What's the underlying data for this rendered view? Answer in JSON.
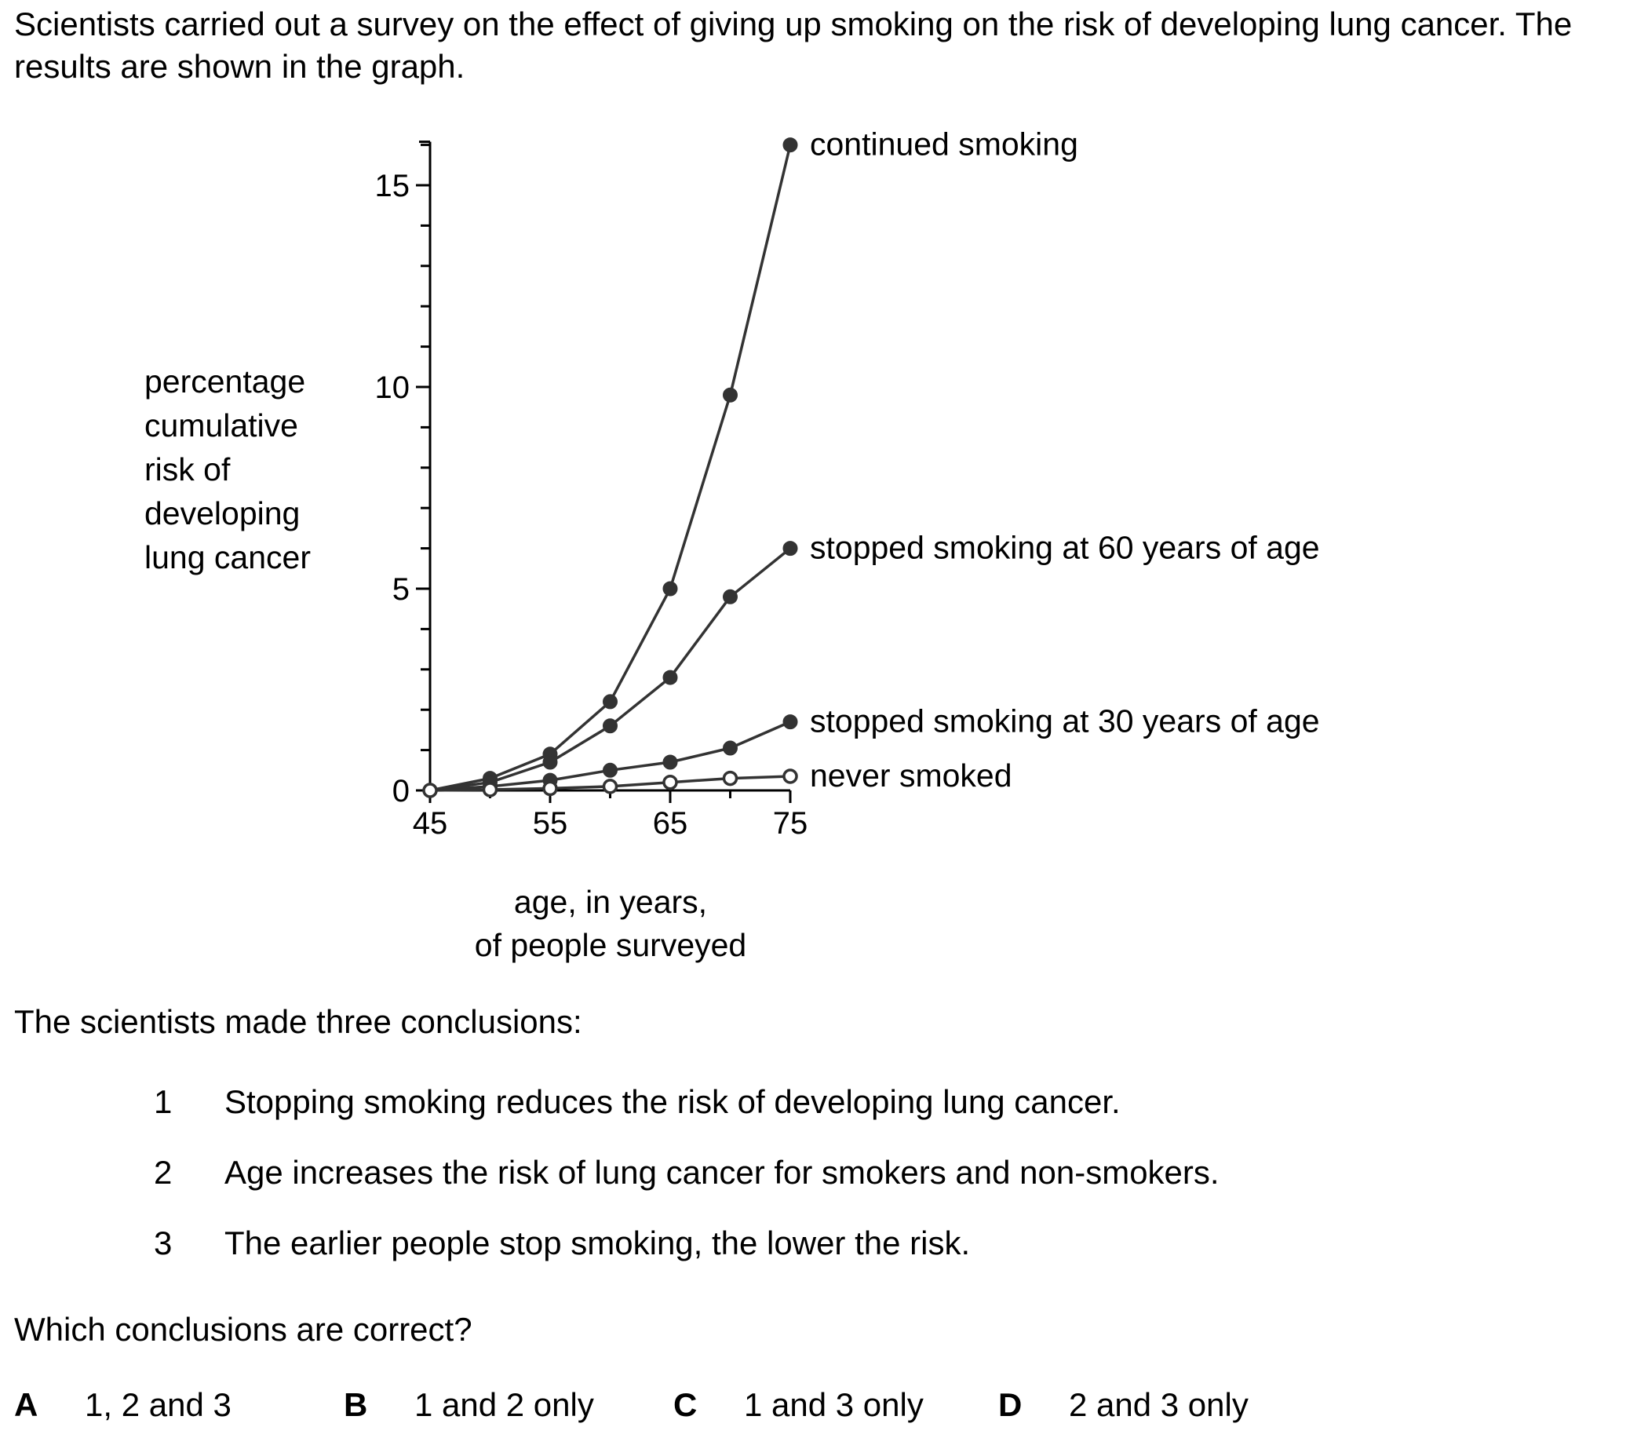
{
  "intro_text": "Scientists carried out a survey on the effect of giving up smoking on the risk of developing lung cancer. The results are shown in the graph.",
  "chart_data": {
    "type": "line",
    "ylabel_lines": [
      "percentage",
      "cumulative",
      "risk of",
      "developing",
      "lung cancer"
    ],
    "xlabel_lines": [
      "age, in years,",
      "of people surveyed"
    ],
    "xlim": [
      45,
      75
    ],
    "ylim": [
      0,
      16
    ],
    "x_ticks": [
      45,
      55,
      65,
      75
    ],
    "y_ticks": [
      0,
      5,
      10,
      15
    ],
    "grid": false,
    "series": [
      {
        "name": "continued smoking",
        "marker": "filled",
        "points": [
          [
            45,
            0
          ],
          [
            50,
            0.3
          ],
          [
            55,
            0.9
          ],
          [
            60,
            2.2
          ],
          [
            65,
            5.0
          ],
          [
            70,
            9.8
          ],
          [
            75,
            16.0
          ]
        ]
      },
      {
        "name": "stopped smoking at 60 years of age",
        "marker": "filled",
        "points": [
          [
            45,
            0
          ],
          [
            50,
            0.2
          ],
          [
            55,
            0.7
          ],
          [
            60,
            1.6
          ],
          [
            65,
            2.8
          ],
          [
            70,
            4.8
          ],
          [
            75,
            6.0
          ]
        ]
      },
      {
        "name": "stopped smoking at 30 years of age",
        "marker": "filled",
        "points": [
          [
            45,
            0
          ],
          [
            50,
            0.1
          ],
          [
            55,
            0.25
          ],
          [
            60,
            0.5
          ],
          [
            65,
            0.7
          ],
          [
            70,
            1.05
          ],
          [
            75,
            1.7
          ]
        ]
      },
      {
        "name": "never smoked",
        "marker": "open",
        "points": [
          [
            45,
            0
          ],
          [
            50,
            0.02
          ],
          [
            55,
            0.05
          ],
          [
            60,
            0.1
          ],
          [
            65,
            0.2
          ],
          [
            70,
            0.3
          ],
          [
            75,
            0.35
          ]
        ]
      }
    ]
  },
  "conclusions_intro": "The scientists made three conclusions:",
  "conclusions": [
    {
      "number": "1",
      "text": "Stopping smoking reduces the risk of developing lung cancer."
    },
    {
      "number": "2",
      "text": "Age increases the risk of lung cancer for smokers and non-smokers."
    },
    {
      "number": "3",
      "text": "The earlier people stop smoking, the lower the risk."
    }
  ],
  "question": "Which conclusions are correct?",
  "options": [
    {
      "letter": "A",
      "text": "1, 2 and 3"
    },
    {
      "letter": "B",
      "text": "1 and 2 only"
    },
    {
      "letter": "C",
      "text": "1 and 3 only"
    },
    {
      "letter": "D",
      "text": "2 and 3 only"
    }
  ],
  "colors": {
    "line": "#333333",
    "marker_fill": "#333333",
    "open_marker_fill": "#ffffff",
    "axis": "#000000"
  }
}
